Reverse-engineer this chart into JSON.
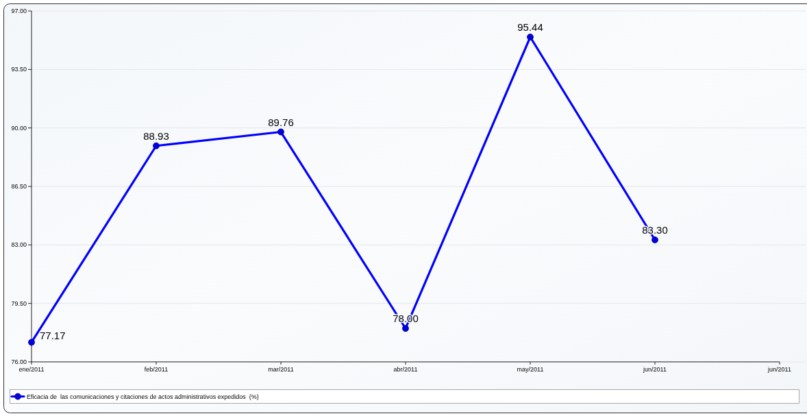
{
  "chart_data": {
    "type": "line",
    "categories": [
      "ene/2011",
      "feb/2011",
      "mar/2011",
      "abr/2011",
      "may/2011",
      "jun/2011",
      "jun/2011"
    ],
    "series": [
      {
        "name": "Eficacia de  las comunicaciones y citaciones de actos administrativos expedidos  (%)",
        "color": "#0000ff",
        "values": [
          77.17,
          88.93,
          89.76,
          78.0,
          95.44,
          83.3,
          null
        ],
        "value_labels": [
          "77.17",
          "88.93",
          "89.76",
          "78.00",
          "95.44",
          "83.30",
          null
        ]
      }
    ],
    "ylim": [
      76,
      97
    ],
    "yticks": [
      {
        "value": 76,
        "label": "76.00"
      },
      {
        "value": 79.5,
        "label": "79.50"
      },
      {
        "value": 83,
        "label": "83.00"
      },
      {
        "value": 86.5,
        "label": "86.50"
      },
      {
        "value": 90,
        "label": "90.00"
      },
      {
        "value": 93.5,
        "label": "93.50"
      },
      {
        "value": 97,
        "label": "97.00"
      }
    ],
    "grid": "y",
    "legend": "bottom",
    "marker": "circle",
    "line_style": "solid"
  }
}
